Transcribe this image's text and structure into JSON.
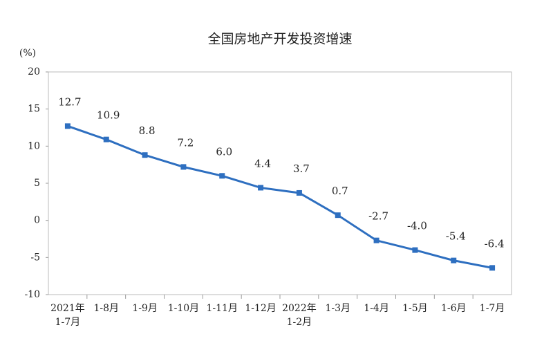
{
  "chart_data": {
    "type": "line",
    "title": "全国房地产开发投资增速",
    "y_label": "(%)",
    "categories": [
      [
        "2021年",
        "1-7月"
      ],
      [
        "1-8月"
      ],
      [
        "1-9月"
      ],
      [
        "1-10月"
      ],
      [
        "1-11月"
      ],
      [
        "1-12月"
      ],
      [
        "2022年",
        "1-2月"
      ],
      [
        "1-3月"
      ],
      [
        "1-4月"
      ],
      [
        "1-5月"
      ],
      [
        "1-6月"
      ],
      [
        "1-7月"
      ]
    ],
    "values": [
      12.7,
      10.9,
      8.8,
      7.2,
      6.0,
      4.4,
      3.7,
      0.7,
      -2.7,
      -4.0,
      -5.4,
      -6.4
    ],
    "value_labels": [
      "12.7",
      "10.9",
      "8.8",
      "7.2",
      "6.0",
      "4.4",
      "3.7",
      "0.7",
      "-2.7",
      "-4.0",
      "-5.4",
      "-6.4"
    ],
    "color": "#2e6fc0",
    "ylim": [
      -10,
      20
    ],
    "yticks": [
      -10,
      -5,
      0,
      5,
      10,
      15,
      20
    ]
  }
}
